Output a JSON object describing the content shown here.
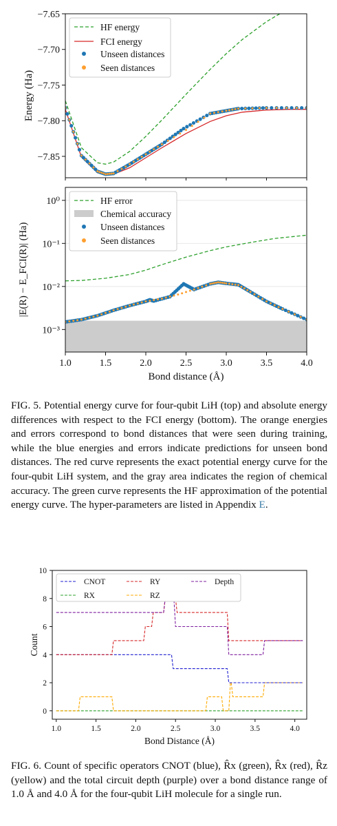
{
  "figure5": {
    "caption": {
      "label": "FIG. 5.",
      "text": "Potential energy curve for four-qubit LiH (top) and absolute energy differences with respect to the FCI energy (bottom). The orange energies and errors correspond to bond distances that were seen during training, while the blue energies and errors indicate predictions for unseen bond distances. The red curve represents the exact potential energy curve for the four-qubit LiH system, and the gray area indicates the region of chemical accuracy. The green curve represents the HF approximation of the potential energy curve. The hyper-parameters are listed in Appendix",
      "appendix_ref": "E",
      "end": "."
    }
  },
  "figure6": {
    "caption": {
      "label": "FIG. 6.",
      "text": "Count of specific operators CNOT (blue), R̂x (green), R̂x (red), R̂z (yellow) and the total circuit depth (purple) over a bond distance range of 1.0 Å and 4.0 Å for the four-qubit LiH molecule for a single run."
    }
  },
  "colors": {
    "hf": "#2ca02c",
    "fci": "#d62728",
    "unseen": "#1f77b4",
    "seen": "#ff9f30",
    "chem": "#cccccc",
    "cnot": "#1f1fd0",
    "rx": "#2ca02c",
    "ry": "#d62728",
    "rz": "#ffaa00",
    "depth": "#7f1f9f"
  },
  "chart_data": [
    {
      "type": "line",
      "panel": "top",
      "ylabel": "Energy (Ha)",
      "ylim": [
        -7.88,
        -7.65
      ],
      "yticks": [
        "−7.65",
        "−7.70",
        "−7.75",
        "−7.80",
        "−7.85"
      ],
      "ytick_values": [
        -7.65,
        -7.7,
        -7.75,
        -7.8,
        -7.85
      ],
      "xlim": [
        1.0,
        4.0
      ],
      "legend": [
        "HF energy",
        "FCI energy",
        "Unseen distances",
        "Seen distances"
      ],
      "legend_position": "top-left",
      "series": [
        {
          "name": "HF energy",
          "x": [
            1.0,
            1.2,
            1.4,
            1.5,
            1.6,
            1.8,
            2.0,
            2.2,
            2.5,
            2.8,
            3.0,
            3.2,
            3.5,
            3.8,
            4.0
          ],
          "values": [
            -7.772,
            -7.838,
            -7.859,
            -7.861,
            -7.858,
            -7.843,
            -7.822,
            -7.799,
            -7.763,
            -7.728,
            -7.706,
            -7.686,
            -7.661,
            -7.641,
            -7.63
          ]
        },
        {
          "name": "FCI energy",
          "x": [
            1.0,
            1.2,
            1.4,
            1.5,
            1.6,
            1.8,
            2.0,
            2.2,
            2.5,
            2.8,
            3.0,
            3.2,
            3.5,
            3.8,
            4.0
          ],
          "values": [
            -7.784,
            -7.851,
            -7.873,
            -7.876,
            -7.875,
            -7.866,
            -7.852,
            -7.838,
            -7.818,
            -7.801,
            -7.793,
            -7.788,
            -7.785,
            -7.784,
            -7.784
          ]
        },
        {
          "name": "Unseen distances",
          "x": [
            1.0,
            1.2,
            1.4,
            1.5,
            1.6,
            1.8,
            2.0,
            2.2,
            2.47,
            2.8,
            3.0,
            3.15,
            3.5,
            4.0
          ],
          "values": [
            -7.782,
            -7.849,
            -7.871,
            -7.875,
            -7.874,
            -7.861,
            -7.847,
            -7.833,
            -7.811,
            -7.79,
            -7.786,
            -7.783,
            -7.782,
            -7.782
          ]
        },
        {
          "name": "Seen distances",
          "x": [
            1.0,
            1.2,
            1.4,
            1.5,
            1.6,
            1.8,
            2.0,
            2.2,
            2.5,
            2.8,
            3.0,
            3.15,
            3.5,
            4.0
          ],
          "values": [
            -7.782,
            -7.849,
            -7.871,
            -7.875,
            -7.874,
            -7.861,
            -7.847,
            -7.833,
            -7.813,
            -7.79,
            -7.786,
            -7.783,
            -7.782,
            -7.782
          ]
        }
      ]
    },
    {
      "type": "line",
      "panel": "bottom",
      "ylabel": "|E(R) − E_FCI(R)| (Ha)",
      "xlabel": "Bond distance (Å)",
      "yscale": "log",
      "ylim": [
        0.0003,
        2.0
      ],
      "yticks": [
        "10⁰",
        "10⁻¹",
        "10⁻²",
        "10⁻³"
      ],
      "ytick_values": [
        1,
        0.1,
        0.01,
        0.001
      ],
      "xlim": [
        1.0,
        4.0
      ],
      "xticks": [
        "1.0",
        "1.5",
        "2.0",
        "2.5",
        "3.0",
        "3.5",
        "4.0"
      ],
      "xtick_values": [
        1.0,
        1.5,
        2.0,
        2.5,
        3.0,
        3.5,
        4.0
      ],
      "legend": [
        "HF error",
        "Chemical accuracy",
        "Unseen distances",
        "Seen distances"
      ],
      "legend_position": "top-left",
      "chemical_accuracy": 0.0016,
      "series": [
        {
          "name": "HF error",
          "x": [
            1.0,
            1.2,
            1.5,
            1.8,
            2.0,
            2.2,
            2.5,
            2.8,
            3.0,
            3.3,
            3.6,
            4.0
          ],
          "values": [
            0.0135,
            0.0138,
            0.0155,
            0.019,
            0.024,
            0.032,
            0.048,
            0.068,
            0.083,
            0.105,
            0.13,
            0.155
          ]
        },
        {
          "name": "Unseen distances",
          "x": [
            1.0,
            1.2,
            1.4,
            1.6,
            1.8,
            2.0,
            2.05,
            2.1,
            2.3,
            2.47,
            2.6,
            2.8,
            2.9,
            3.0,
            3.15,
            3.3,
            3.5,
            3.7,
            4.0
          ],
          "values": [
            0.0015,
            0.0017,
            0.0021,
            0.0028,
            0.0036,
            0.0045,
            0.0049,
            0.0046,
            0.0058,
            0.0115,
            0.0085,
            0.0115,
            0.0125,
            0.0118,
            0.011,
            0.0075,
            0.0045,
            0.003,
            0.0017
          ]
        },
        {
          "name": "Seen distances",
          "x": [
            1.0,
            1.2,
            1.4,
            1.6,
            1.8,
            2.0,
            2.2,
            2.4,
            2.6,
            2.8,
            2.9,
            3.0,
            3.15,
            3.3,
            3.5,
            3.7,
            4.0
          ],
          "values": [
            0.0015,
            0.0017,
            0.0021,
            0.0028,
            0.0036,
            0.0045,
            0.0052,
            0.0065,
            0.0085,
            0.0115,
            0.0125,
            0.0118,
            0.0108,
            0.0075,
            0.0045,
            0.003,
            0.0017
          ]
        }
      ]
    },
    {
      "type": "line",
      "panel": "figure6",
      "ylabel": "Count",
      "xlabel": "Bond Distance (Å)",
      "ylim": [
        -0.6,
        10
      ],
      "yticks": [
        "0",
        "2",
        "4",
        "6",
        "8",
        "10"
      ],
      "ytick_values": [
        0,
        2,
        4,
        6,
        8,
        10
      ],
      "xlim": [
        0.95,
        4.15
      ],
      "xticks": [
        "1.0",
        "1.5",
        "2.0",
        "2.5",
        "3.0",
        "3.5",
        "4.0"
      ],
      "xtick_values": [
        1.0,
        1.5,
        2.0,
        2.5,
        3.0,
        3.5,
        4.0
      ],
      "legend": [
        "CNOT",
        "RY",
        "Depth",
        "RX",
        "RZ"
      ],
      "legend_position": "top",
      "series": [
        {
          "name": "CNOT",
          "x": [
            1.0,
            2.45,
            2.47,
            3.15,
            3.17,
            4.1
          ],
          "values": [
            4,
            4,
            3,
            3,
            2,
            2
          ]
        },
        {
          "name": "RX",
          "x": [
            1.0,
            4.1
          ],
          "values": [
            0,
            0
          ]
        },
        {
          "name": "RY",
          "x": [
            1.0,
            1.7,
            1.72,
            2.1,
            2.12,
            2.2,
            2.22,
            2.35,
            2.37,
            2.5,
            2.52,
            2.9,
            2.92,
            3.15,
            3.17,
            4.1
          ],
          "values": [
            4,
            4,
            5,
            5,
            6,
            6,
            7,
            7,
            8,
            8,
            7,
            7,
            7,
            7,
            5,
            5
          ]
        },
        {
          "name": "RZ",
          "x": [
            1.0,
            1.28,
            1.3,
            1.7,
            1.72,
            2.88,
            2.9,
            3.08,
            3.1,
            3.17,
            3.19,
            3.2,
            3.22,
            3.6,
            3.62,
            4.1
          ],
          "values": [
            0,
            0,
            1,
            1,
            0,
            0,
            1,
            1,
            0,
            0,
            2,
            2,
            1,
            1,
            2,
            2
          ]
        },
        {
          "name": "Depth",
          "x": [
            1.0,
            2.35,
            2.37,
            2.48,
            2.5,
            3.15,
            3.17,
            3.6,
            3.62,
            4.1
          ],
          "values": [
            7,
            7,
            8,
            8,
            6,
            6,
            4,
            4,
            5,
            5
          ]
        }
      ]
    }
  ]
}
